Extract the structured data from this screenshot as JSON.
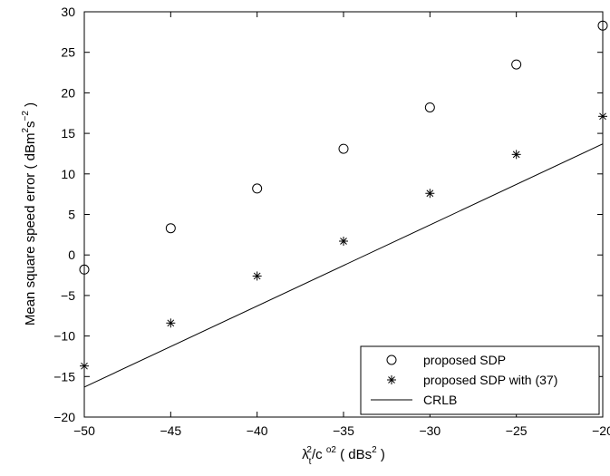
{
  "chart_data": {
    "type": "scatter",
    "title": "",
    "xlabel": {
      "base": "λ",
      "sub": "t",
      "sup": "2",
      "mid": "/c ",
      "sup2": "o2",
      "paren_open": " ( dBs",
      "unit_sup": "2",
      "paren_close": " )"
    },
    "ylabel": {
      "prefix": "Mean square speed error ( dBm",
      "sup1": "2",
      "mid": "s",
      "sup2": "−2",
      "suffix": " )"
    },
    "xlim": [
      -50,
      -20
    ],
    "ylim": [
      -20,
      30
    ],
    "xticks": [
      -50,
      -45,
      -40,
      -35,
      -30,
      -25,
      -20
    ],
    "xtick_labels": [
      "−50",
      "−45",
      "−40",
      "−35",
      "−30",
      "−25",
      "−20"
    ],
    "yticks": [
      -20,
      -15,
      -10,
      -5,
      0,
      5,
      10,
      15,
      20,
      25,
      30
    ],
    "ytick_labels": [
      "−20",
      "−15",
      "−10",
      "−5",
      "0",
      "5",
      "10",
      "15",
      "20",
      "25",
      "30"
    ],
    "grid": false,
    "legend_position": "bottom-right",
    "series": [
      {
        "name": "proposed SDP",
        "marker": "circle",
        "x": [
          -50,
          -45,
          -40,
          -35,
          -30,
          -25,
          -20
        ],
        "y": [
          -1.8,
          3.3,
          8.2,
          13.1,
          18.2,
          23.5,
          28.3
        ]
      },
      {
        "name": "proposed SDP with (37)",
        "marker": "asterisk",
        "x": [
          -50,
          -45,
          -40,
          -35,
          -30,
          -25,
          -20
        ],
        "y": [
          -13.7,
          -8.4,
          -2.6,
          1.7,
          7.6,
          12.4,
          17.1
        ]
      },
      {
        "name": "CRLB",
        "marker": "line",
        "x": [
          -50,
          -20
        ],
        "y": [
          -16.3,
          13.7
        ]
      }
    ]
  }
}
